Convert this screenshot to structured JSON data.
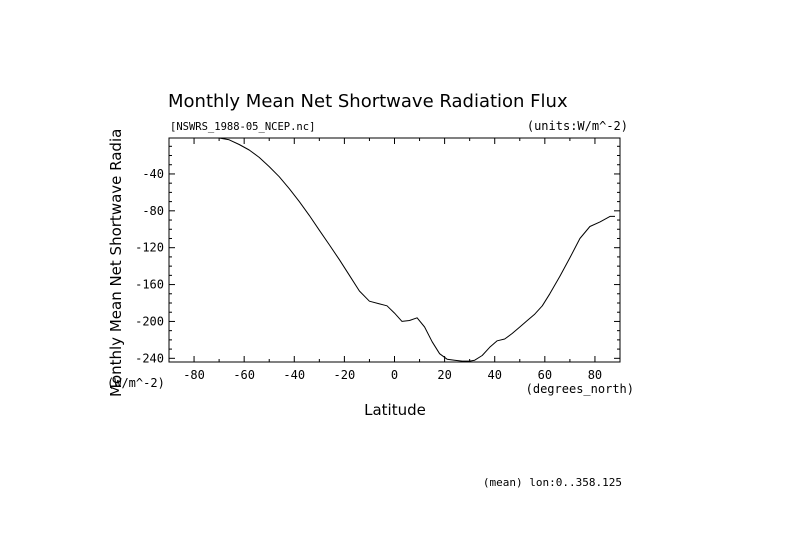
{
  "chart_data": {
    "type": "line",
    "title": "Monthly Mean Net Shortwave Radiation Flux",
    "file_label": "[NSWRS_1988-05_NCEP.nc]",
    "units_label": "(units:W/m^-2)",
    "ylabel": "Monthly Mean Net Shortwave Radia",
    "ylabel_units": "(W/m^-2)",
    "xlabel": "Latitude",
    "xunits": "(degrees_north)",
    "footer": "(mean) lon:0..358.125",
    "xlim": [
      -90,
      90
    ],
    "ylim": [
      -244,
      -1
    ],
    "xticks": [
      -80,
      -60,
      -40,
      -20,
      0,
      20,
      40,
      60,
      80
    ],
    "yticks": [
      -240,
      -200,
      -160,
      -120,
      -80,
      -40
    ],
    "grid": false,
    "series": [
      {
        "x": [
          -76,
          -70,
          -66,
          -62,
          -58,
          -54,
          -50,
          -46,
          -42,
          -38,
          -34,
          -30,
          -26,
          -22,
          -18,
          -14,
          -10,
          -6,
          -3,
          0,
          3,
          6,
          9,
          12,
          15,
          18,
          21,
          24,
          27,
          30,
          32,
          35,
          38,
          41,
          44,
          47,
          50,
          53,
          56,
          59,
          62,
          66,
          70,
          74,
          78,
          82,
          86,
          88
        ],
        "y": [
          -1,
          -1,
          -3,
          -8,
          -14,
          -22,
          -32,
          -43,
          -56,
          -70,
          -85,
          -101,
          -117,
          -133,
          -150,
          -167,
          -178,
          -181,
          -183,
          -191,
          -200,
          -199,
          -196,
          -206,
          -222,
          -235,
          -241,
          -242,
          -243,
          -243,
          -242,
          -237,
          -228,
          -221,
          -219,
          -213,
          -206,
          -199,
          -192,
          -183,
          -170,
          -151,
          -131,
          -110,
          -97,
          -92,
          -86,
          -86
        ]
      }
    ]
  }
}
